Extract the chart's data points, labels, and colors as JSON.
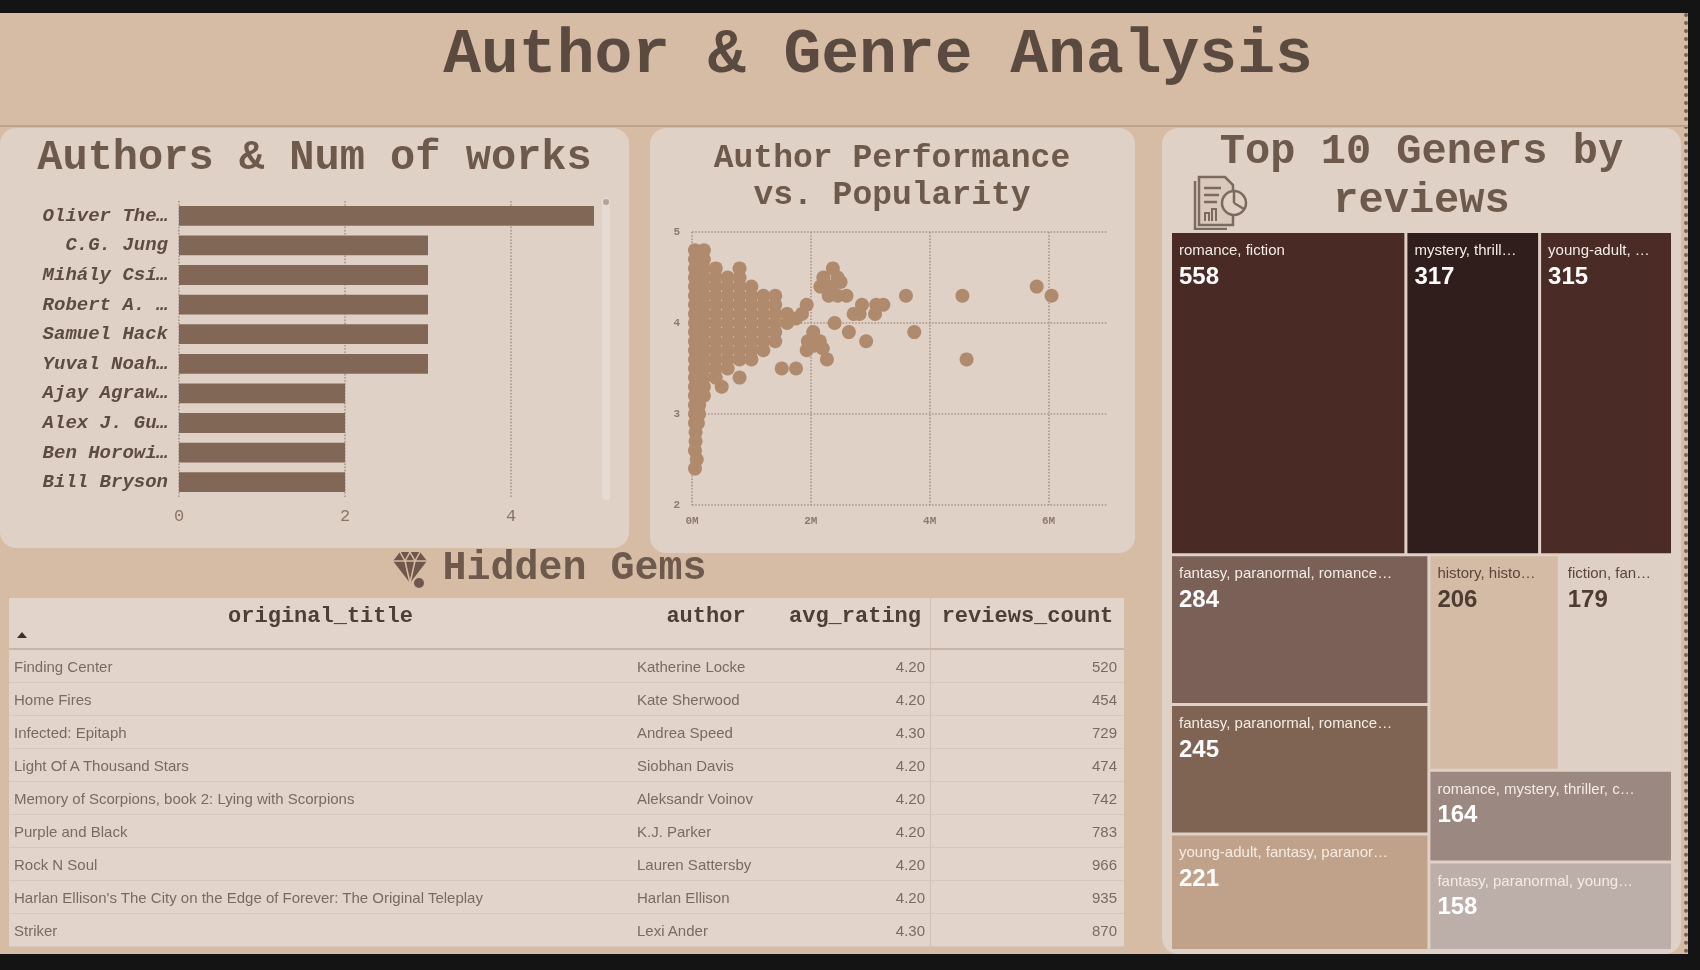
{
  "chart_data": [
    {
      "type": "other",
      "title": "Author & Genre Analysis"
    },
    {
      "type": "bar",
      "orientation": "horizontal",
      "title": "Authors & Num of works",
      "categories": [
        "Oliver The…",
        "C.G. Jung",
        "Mihály Csí…",
        "Robert A. …",
        "Samuel Hack",
        "Yuval Noah…",
        "Ajay Agraw…",
        "Alex J. Gu…",
        "Ben Horowi…",
        "Bill Bryson"
      ],
      "values": [
        5,
        3,
        3,
        3,
        3,
        3,
        2,
        2,
        2,
        2
      ],
      "color": "#806756",
      "xlim": [
        0,
        5
      ],
      "xticks": [
        0,
        2,
        4
      ],
      "grid": "x"
    },
    {
      "type": "scatter",
      "title": "Author Performance vs. Popularity",
      "x": [
        0.05,
        0.2,
        0.05,
        0.2,
        0.05,
        0.2,
        0.4,
        0.8,
        0.05,
        0.2,
        0.4,
        0.6,
        0.8,
        0.05,
        0.2,
        0.4,
        0.6,
        0.8,
        1,
        0.05,
        0.2,
        0.4,
        0.6,
        0.8,
        1,
        1.2,
        1.4,
        0.05,
        0.2,
        0.4,
        0.6,
        0.8,
        1,
        1.2,
        1.4,
        0.05,
        0.2,
        0.4,
        0.6,
        0.8,
        1,
        1.2,
        1.4,
        1.6,
        0.05,
        0.2,
        0.4,
        0.6,
        0.8,
        1,
        1.2,
        1.4,
        1.6,
        0.05,
        0.2,
        0.4,
        0.6,
        0.8,
        1,
        1.2,
        1.4,
        0.05,
        0.2,
        0.4,
        0.6,
        0.8,
        1,
        1.2,
        1.4,
        0.05,
        0.2,
        0.4,
        0.6,
        0.8,
        1,
        1.2,
        0.05,
        0.2,
        0.4,
        0.6,
        0.8,
        1,
        0.05,
        0.2,
        0.4,
        0.6,
        0.05,
        0.2,
        0.4,
        0.8,
        0.05,
        0.2,
        0.5,
        0.05,
        0.2,
        0.05,
        0.12,
        0.05,
        0.12,
        0.05,
        0.1,
        0.06,
        0.06,
        0.05,
        0.08,
        0.05,
        5.8,
        6.05,
        4.55,
        4.62,
        3.6,
        3.74,
        2.93,
        2.64,
        2.4,
        2.37,
        2.21,
        2.45,
        2.16,
        2.35,
        2.5,
        2.3,
        2.45,
        2.6,
        2.72,
        2.86,
        2.82,
        3.1,
        3.22,
        3.08,
        1.93,
        1.85,
        1.75,
        2.04,
        1.95,
        2.15,
        2.05,
        1.93,
        2.2,
        2.27,
        1.51,
        1.75
      ],
      "values": [
        4.8,
        4.8,
        4.7,
        4.7,
        4.6,
        4.6,
        4.6,
        4.6,
        4.5,
        4.5,
        4.5,
        4.5,
        4.5,
        4.4,
        4.4,
        4.4,
        4.4,
        4.4,
        4.4,
        4.3,
        4.3,
        4.3,
        4.3,
        4.3,
        4.3,
        4.3,
        4.3,
        4.2,
        4.2,
        4.2,
        4.2,
        4.2,
        4.2,
        4.2,
        4.2,
        4.1,
        4.1,
        4.1,
        4.1,
        4.1,
        4.1,
        4.1,
        4.1,
        4.1,
        4,
        4,
        4,
        4,
        4,
        4,
        4,
        4,
        4,
        3.9,
        3.9,
        3.9,
        3.9,
        3.9,
        3.9,
        3.9,
        3.9,
        3.8,
        3.8,
        3.8,
        3.8,
        3.8,
        3.8,
        3.8,
        3.8,
        3.7,
        3.7,
        3.7,
        3.7,
        3.7,
        3.7,
        3.7,
        3.6,
        3.6,
        3.6,
        3.6,
        3.6,
        3.6,
        3.5,
        3.5,
        3.5,
        3.5,
        3.4,
        3.4,
        3.4,
        3.4,
        3.3,
        3.3,
        3.3,
        3.2,
        3.2,
        3.1,
        3.1,
        3,
        3,
        2.9,
        2.9,
        2.8,
        2.7,
        2.6,
        2.5,
        2.4,
        4.4,
        4.3,
        4.3,
        3.6,
        4.3,
        3.9,
        3.8,
        3.9,
        4,
        4.6,
        4.5,
        4.5,
        4.4,
        4.4,
        4.45,
        4.3,
        4.3,
        4.3,
        4.1,
        4.2,
        4.1,
        4.2,
        4.2,
        4.1,
        4.2,
        4.1,
        4.05,
        3.9,
        3.8,
        3.8,
        3.75,
        3.7,
        3.72,
        3.6,
        3.5,
        3.5
      ],
      "color": "#b08a6c",
      "marker": "circle",
      "xlim": [
        0,
        7
      ],
      "xticks": [
        {
          "value": 0,
          "label": "0M"
        },
        {
          "value": 2,
          "label": "2M"
        },
        {
          "value": 4,
          "label": "4M"
        },
        {
          "value": 6,
          "label": "6M"
        }
      ],
      "ylim": [
        2,
        5
      ],
      "yticks": [
        2,
        3,
        4,
        5
      ],
      "grid": true
    },
    {
      "type": "other",
      "title": "Top 10 Geners by reviews",
      "categories": [
        "romance, fiction",
        "mystery, thrill…",
        "young-adult, …",
        "fantasy, paranormal, romance…",
        "fantasy, paranormal, romance…",
        "young-adult, fantasy, paranor…",
        "history, histo…",
        "fiction, fan…",
        "romance, mystery, thriller, c…",
        "fantasy, paranormal, young…"
      ],
      "values": [
        558,
        317,
        315,
        284,
        245,
        221,
        206,
        179,
        164,
        158
      ],
      "colors": [
        "#4a2a24",
        "#2f1e1b",
        "#4b2b25",
        "#7b6058",
        "#806453",
        "#c0a28a",
        "#d4bba6",
        "#dfd0c6",
        "#9b8880",
        "#bcaea8"
      ],
      "data_labels": true
    },
    {
      "type": "other",
      "title": "Hidden Gems",
      "categories": [
        "original_title",
        "author",
        "avg_rating",
        "reviews_count"
      ],
      "cell_labels": [
        [
          "Finding Center",
          "Katherine Locke",
          "4.20",
          "520"
        ],
        [
          "Home Fires",
          "Kate Sherwood",
          "4.20",
          "454"
        ],
        [
          "Infected: Epitaph",
          "Andrea Speed",
          "4.30",
          "729"
        ],
        [
          "Light Of A Thousand Stars",
          "Siobhan Davis",
          "4.20",
          "474"
        ],
        [
          "Memory of Scorpions, book 2: Lying with Scorpions",
          "Aleksandr Voinov",
          "4.20",
          "742"
        ],
        [
          "Purple and Black",
          "K.J. Parker",
          "4.20",
          "783"
        ],
        [
          "Rock N Soul",
          "Lauren Sattersby",
          "4.20",
          "966"
        ],
        [
          "Harlan Ellison's The City on the Edge of Forever: The Original Teleplay",
          "Harlan Ellison",
          "4.20",
          "935"
        ],
        [
          "Striker",
          "Lexi Ander",
          "4.30",
          "870"
        ]
      ]
    }
  ]
}
